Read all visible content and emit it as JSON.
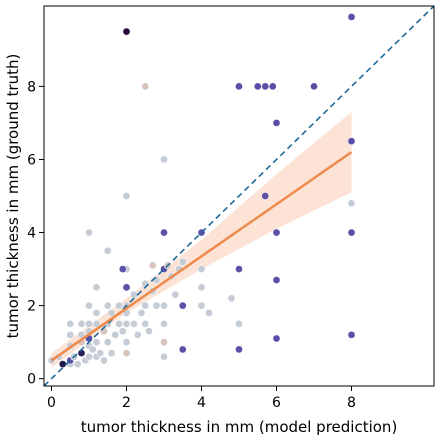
{
  "chart_data": {
    "type": "scatter",
    "xlabel": "tumor thickness in mm (model prediction)",
    "ylabel": "tumor thickness in mm (ground truth)",
    "xlim": [
      -0.2,
      10.2
    ],
    "ylim": [
      -0.2,
      10.2
    ],
    "xticks": [
      0,
      2,
      4,
      6,
      8
    ],
    "yticks": [
      0,
      2,
      4,
      6,
      8
    ],
    "grid": false,
    "identity_line": {
      "x": [
        -0.2,
        10.2
      ],
      "y": [
        -0.2,
        10.2
      ],
      "color": "#1f6a9a",
      "style": "dashed"
    },
    "regression": {
      "x": [
        0,
        8
      ],
      "y": [
        0.5,
        6.2
      ],
      "color": "#ee8a4c",
      "ci_upper": [
        [
          0,
          0.7
        ],
        [
          2,
          2.2
        ],
        [
          4,
          3.8
        ],
        [
          6,
          5.6
        ],
        [
          8,
          7.3
        ]
      ],
      "ci_lower": [
        [
          0,
          0.3
        ],
        [
          2,
          1.8
        ],
        [
          4,
          3.0
        ],
        [
          6,
          4.1
        ],
        [
          8,
          5.1
        ]
      ],
      "ci_color": "#fbd9c7"
    },
    "points": [
      {
        "x": 0.0,
        "y": 0.5,
        "color": "#c6ccd6"
      },
      {
        "x": 0.2,
        "y": 0.6,
        "color": "#c6ccd6"
      },
      {
        "x": 0.3,
        "y": 0.4,
        "color": "#1e1b4b"
      },
      {
        "x": 0.5,
        "y": 0.4,
        "color": "#c6ccd6"
      },
      {
        "x": 0.5,
        "y": 0.5,
        "color": "#5b4fa8"
      },
      {
        "x": 0.6,
        "y": 0.6,
        "color": "#c6ccd6"
      },
      {
        "x": 0.7,
        "y": 0.4,
        "color": "#c6ccd6"
      },
      {
        "x": 0.8,
        "y": 0.7,
        "color": "#2a1f5e"
      },
      {
        "x": 0.9,
        "y": 0.5,
        "color": "#c6ccd6"
      },
      {
        "x": 1.0,
        "y": 0.6,
        "color": "#c6ccd6"
      },
      {
        "x": 1.0,
        "y": 0.9,
        "color": "#c6ccd6"
      },
      {
        "x": 1.1,
        "y": 0.8,
        "color": "#c6ccd6"
      },
      {
        "x": 1.2,
        "y": 0.6,
        "color": "#c6ccd6"
      },
      {
        "x": 1.3,
        "y": 0.7,
        "color": "#c6ccd6"
      },
      {
        "x": 1.4,
        "y": 0.5,
        "color": "#c6ccd6"
      },
      {
        "x": 1.5,
        "y": 1.0,
        "color": "#c6ccd6"
      },
      {
        "x": 1.6,
        "y": 0.7,
        "color": "#c6ccd6"
      },
      {
        "x": 2.0,
        "y": 0.7,
        "color": "#d8c3bd"
      },
      {
        "x": 2.0,
        "y": 1.0,
        "color": "#c6ccd6"
      },
      {
        "x": 0.5,
        "y": 0.9,
        "color": "#c6ccd6"
      },
      {
        "x": 0.8,
        "y": 1.0,
        "color": "#d8c3bd"
      },
      {
        "x": 1.0,
        "y": 1.1,
        "color": "#5b4fa8"
      },
      {
        "x": 1.2,
        "y": 1.0,
        "color": "#c6ccd6"
      },
      {
        "x": 0.5,
        "y": 1.2,
        "color": "#c6ccd6"
      },
      {
        "x": 0.5,
        "y": 1.5,
        "color": "#c6ccd6"
      },
      {
        "x": 0.8,
        "y": 1.2,
        "color": "#c6ccd6"
      },
      {
        "x": 0.8,
        "y": 1.5,
        "color": "#c6ccd6"
      },
      {
        "x": 1.0,
        "y": 1.3,
        "color": "#c6ccd6"
      },
      {
        "x": 1.0,
        "y": 1.5,
        "color": "#c6ccd6"
      },
      {
        "x": 1.0,
        "y": 2.0,
        "color": "#c6ccd6"
      },
      {
        "x": 1.2,
        "y": 1.5,
        "color": "#c6ccd6"
      },
      {
        "x": 1.2,
        "y": 1.8,
        "color": "#c6ccd6"
      },
      {
        "x": 1.4,
        "y": 1.3,
        "color": "#d8c3bd"
      },
      {
        "x": 1.5,
        "y": 1.5,
        "color": "#c6ccd6"
      },
      {
        "x": 1.5,
        "y": 2.0,
        "color": "#c6ccd6"
      },
      {
        "x": 1.6,
        "y": 1.8,
        "color": "#c6ccd6"
      },
      {
        "x": 1.7,
        "y": 1.2,
        "color": "#c6ccd6"
      },
      {
        "x": 1.8,
        "y": 1.5,
        "color": "#c6ccd6"
      },
      {
        "x": 1.8,
        "y": 2.0,
        "color": "#c6ccd6"
      },
      {
        "x": 1.9,
        "y": 1.3,
        "color": "#c6ccd6"
      },
      {
        "x": 2.0,
        "y": 1.5,
        "color": "#c6ccd6"
      },
      {
        "x": 2.0,
        "y": 1.8,
        "color": "#c6ccd6"
      },
      {
        "x": 2.0,
        "y": 2.0,
        "color": "#c6ccd6"
      },
      {
        "x": 2.0,
        "y": 2.5,
        "color": "#c6ccd6"
      },
      {
        "x": 2.0,
        "y": 3.0,
        "color": "#c6ccd6"
      },
      {
        "x": 2.2,
        "y": 1.5,
        "color": "#c6ccd6"
      },
      {
        "x": 2.2,
        "y": 2.3,
        "color": "#c6ccd6"
      },
      {
        "x": 2.3,
        "y": 1.2,
        "color": "#c6ccd6"
      },
      {
        "x": 2.4,
        "y": 1.8,
        "color": "#c6ccd6"
      },
      {
        "x": 2.5,
        "y": 1.5,
        "color": "#c6ccd6"
      },
      {
        "x": 2.5,
        "y": 2.0,
        "color": "#c6ccd6"
      },
      {
        "x": 2.5,
        "y": 2.6,
        "color": "#c6ccd6"
      },
      {
        "x": 2.6,
        "y": 1.3,
        "color": "#c6ccd6"
      },
      {
        "x": 2.7,
        "y": 2.4,
        "color": "#c6ccd6"
      },
      {
        "x": 2.8,
        "y": 2.0,
        "color": "#c6ccd6"
      },
      {
        "x": 2.8,
        "y": 2.7,
        "color": "#c6ccd6"
      },
      {
        "x": 3.0,
        "y": 1.5,
        "color": "#c6ccd6"
      },
      {
        "x": 3.0,
        "y": 2.0,
        "color": "#c6ccd6"
      },
      {
        "x": 3.0,
        "y": 3.0,
        "color": "#c6ccd6"
      },
      {
        "x": 3.0,
        "y": 1.0,
        "color": "#d8c3bd"
      },
      {
        "x": 3.0,
        "y": 0.6,
        "color": "#c6ccd6"
      },
      {
        "x": 3.2,
        "y": 2.8,
        "color": "#c6ccd6"
      },
      {
        "x": 3.3,
        "y": 2.3,
        "color": "#c6ccd6"
      },
      {
        "x": 3.4,
        "y": 3.0,
        "color": "#c6ccd6"
      },
      {
        "x": 3.5,
        "y": 2.0,
        "color": "#5b4fa8"
      },
      {
        "x": 3.5,
        "y": 0.8,
        "color": "#5b4fa8"
      },
      {
        "x": 3.5,
        "y": 3.2,
        "color": "#c6ccd6"
      },
      {
        "x": 1.0,
        "y": 4.0,
        "color": "#c6ccd6"
      },
      {
        "x": 1.2,
        "y": 2.5,
        "color": "#c6ccd6"
      },
      {
        "x": 1.9,
        "y": 3.0,
        "color": "#5b4fa8"
      },
      {
        "x": 1.5,
        "y": 3.5,
        "color": "#c6ccd6"
      },
      {
        "x": 2.0,
        "y": 5.0,
        "color": "#c6ccd6"
      },
      {
        "x": 2.0,
        "y": 2.5,
        "color": "#5b4fa8"
      },
      {
        "x": 2.5,
        "y": 8.0,
        "color": "#d8c3bd"
      },
      {
        "x": 2.0,
        "y": 9.5,
        "color": "#2a0a3a"
      },
      {
        "x": 3.0,
        "y": 6.0,
        "color": "#c6ccd6"
      },
      {
        "x": 3.0,
        "y": 3.0,
        "color": "#5b4fa8"
      },
      {
        "x": 3.0,
        "y": 4.0,
        "color": "#5b4fa8"
      },
      {
        "x": 2.7,
        "y": 3.1,
        "color": "#d8c3bd"
      },
      {
        "x": 3.1,
        "y": 3.1,
        "color": "#d8c3bd"
      },
      {
        "x": 4.0,
        "y": 4.0,
        "color": "#5b4fa8"
      },
      {
        "x": 4.0,
        "y": 2.5,
        "color": "#c6ccd6"
      },
      {
        "x": 4.0,
        "y": 3.0,
        "color": "#c6ccd6"
      },
      {
        "x": 4.0,
        "y": 2.0,
        "color": "#c6ccd6"
      },
      {
        "x": 4.2,
        "y": 1.8,
        "color": "#c6ccd6"
      },
      {
        "x": 4.8,
        "y": 2.2,
        "color": "#c6ccd6"
      },
      {
        "x": 5.0,
        "y": 3.0,
        "color": "#5b4fa8"
      },
      {
        "x": 5.0,
        "y": 1.5,
        "color": "#c6ccd6"
      },
      {
        "x": 5.0,
        "y": 0.8,
        "color": "#5b4fa8"
      },
      {
        "x": 5.0,
        "y": 8.0,
        "color": "#5b4fa8"
      },
      {
        "x": 5.5,
        "y": 8.0,
        "color": "#5b4fa8"
      },
      {
        "x": 5.7,
        "y": 8.0,
        "color": "#5b4fa8"
      },
      {
        "x": 5.9,
        "y": 8.0,
        "color": "#5b4fa8"
      },
      {
        "x": 5.7,
        "y": 5.0,
        "color": "#5b4fa8"
      },
      {
        "x": 6.0,
        "y": 7.0,
        "color": "#5b4fa8"
      },
      {
        "x": 6.0,
        "y": 4.0,
        "color": "#5b4fa8"
      },
      {
        "x": 6.0,
        "y": 2.7,
        "color": "#5b4fa8"
      },
      {
        "x": 6.0,
        "y": 1.1,
        "color": "#5b4fa8"
      },
      {
        "x": 7.0,
        "y": 8.0,
        "color": "#5b4fa8"
      },
      {
        "x": 8.0,
        "y": 9.9,
        "color": "#5b4fa8"
      },
      {
        "x": 8.0,
        "y": 6.5,
        "color": "#5b4fa8"
      },
      {
        "x": 8.0,
        "y": 4.8,
        "color": "#c6ccd6"
      },
      {
        "x": 8.0,
        "y": 4.0,
        "color": "#5b4fa8"
      },
      {
        "x": 8.0,
        "y": 1.2,
        "color": "#5b4fa8"
      }
    ]
  }
}
